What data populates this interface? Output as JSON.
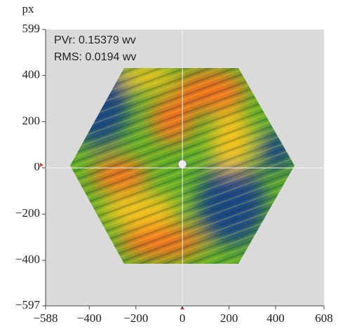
{
  "chart_data": {
    "type": "surface-map",
    "y_label": "px",
    "annotations": [
      "PVr: 0.15379 wv",
      "RMS: 0.0194 wv"
    ],
    "xlim": [
      -588,
      608
    ],
    "ylim": [
      -597,
      599
    ],
    "xticks": [
      {
        "value": -588,
        "label": "−588"
      },
      {
        "value": -400,
        "label": "−400"
      },
      {
        "value": -200,
        "label": "−200"
      },
      0,
      200,
      400,
      608
    ],
    "yticks": [
      599,
      400,
      200,
      0,
      {
        "value": -200,
        "label": "−200"
      },
      {
        "value": -400,
        "label": "−400"
      },
      {
        "value": -597,
        "label": "−597"
      }
    ],
    "crosshair": true
  }
}
